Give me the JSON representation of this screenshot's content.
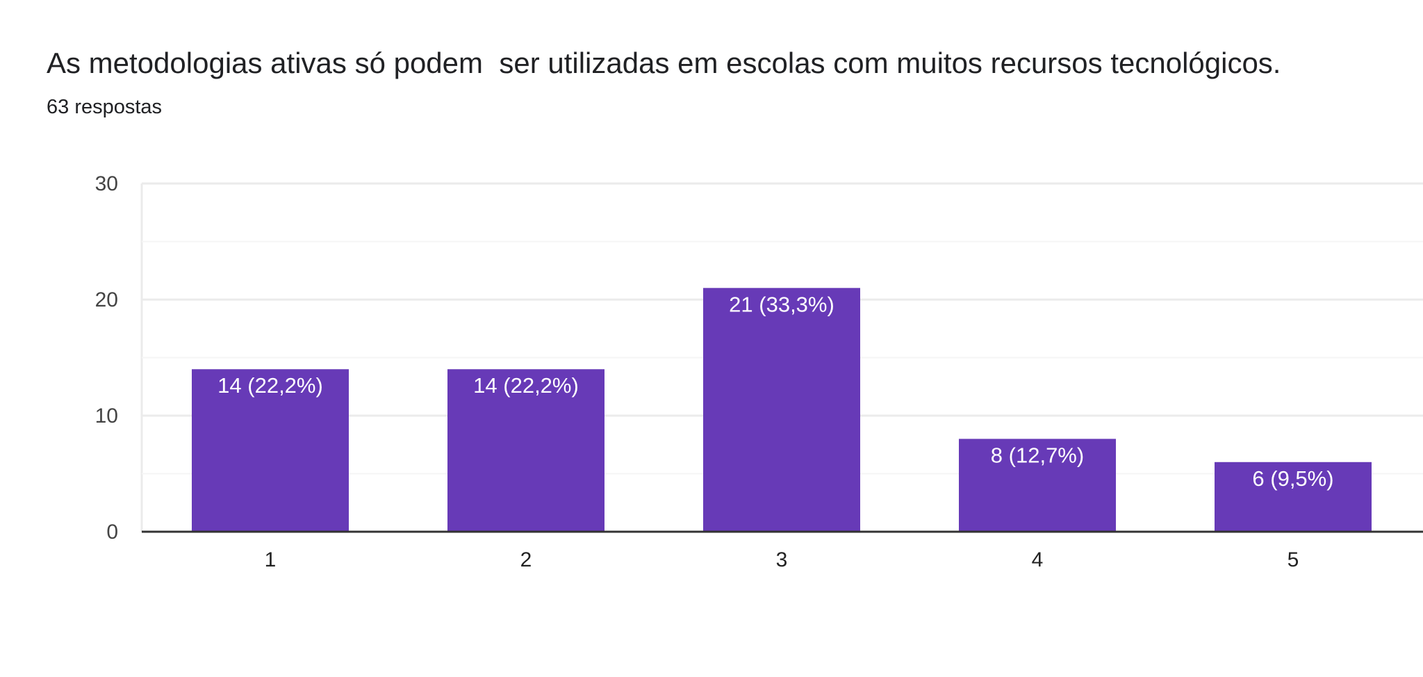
{
  "header": {
    "title": "As metodologias ativas só podem  ser utilizadas em escolas com muitos recursos tecnológicos.",
    "responses": "63 respostas"
  },
  "colors": {
    "bar": "#673ab7",
    "gridline": "#ebebeb",
    "axis": "#333333"
  },
  "chart_data": {
    "type": "bar",
    "title": "As metodologias ativas só podem  ser utilizadas em escolas com muitos recursos tecnológicos.",
    "categories": [
      "1",
      "2",
      "3",
      "4",
      "5"
    ],
    "values": [
      14,
      14,
      21,
      8,
      6
    ],
    "data_labels": [
      "14 (22,2%)",
      "14 (22,2%)",
      "21 (33,3%)",
      "8 (12,7%)",
      "6 (9,5%)"
    ],
    "ylim": [
      0,
      30
    ],
    "yticks": [
      0,
      10,
      20,
      30
    ],
    "xlabel": "",
    "ylabel": "",
    "grid": true,
    "legend": "none"
  }
}
